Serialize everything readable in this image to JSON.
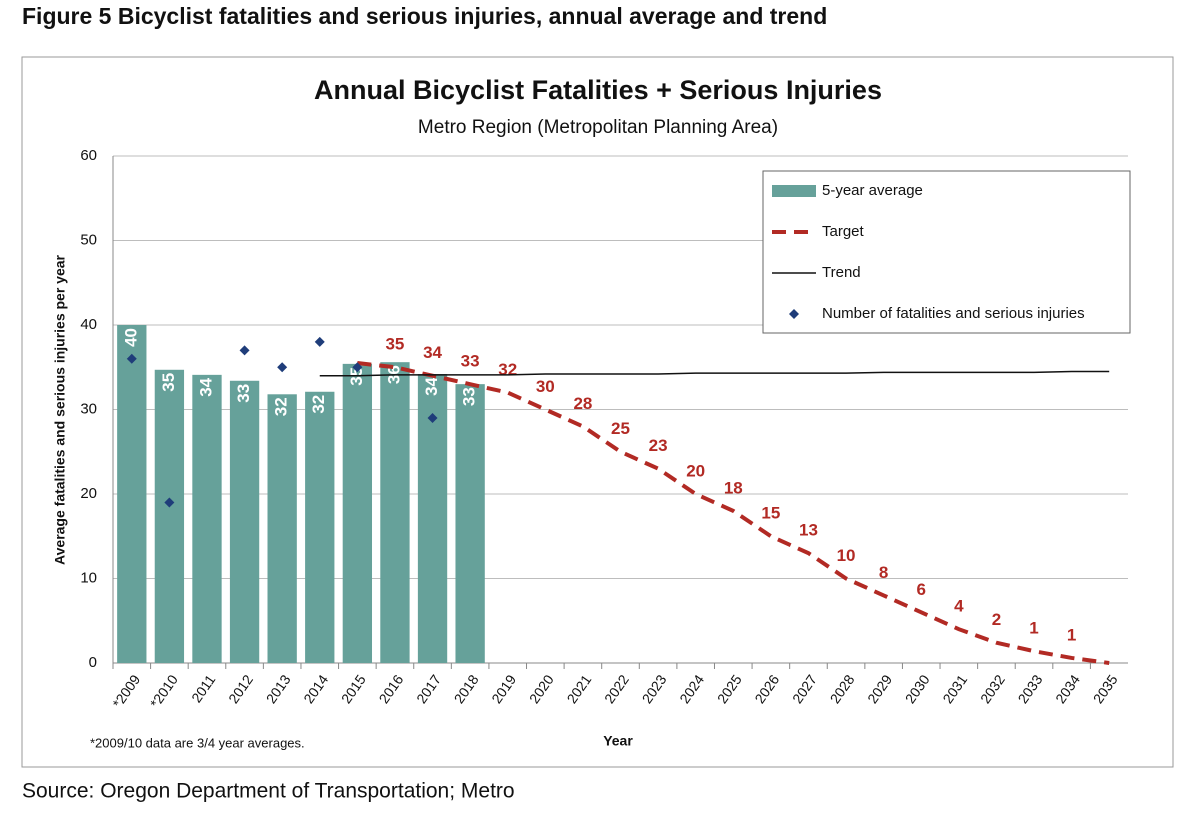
{
  "figure_title": "Figure 5 Bicyclist fatalities and serious injuries, annual average and trend",
  "source": "Source: Oregon Department of Transportation; Metro",
  "chart_data": {
    "type": "bar",
    "title": "Annual Bicyclist Fatalities + Serious Injuries",
    "subtitle": "Metro Region (Metropolitan Planning Area)",
    "xlabel": "Year",
    "ylabel": "Average fatalities and serious injuries per year",
    "footnote": "*2009/10 data are 3/4 year averages.",
    "categories": [
      "*2009",
      "*2010",
      "2011",
      "2012",
      "2013",
      "2014",
      "2015",
      "2016",
      "2017",
      "2018",
      "2019",
      "2020",
      "2021",
      "2022",
      "2023",
      "2024",
      "2025",
      "2026",
      "2027",
      "2028",
      "2029",
      "2030",
      "2031",
      "2032",
      "2033",
      "2034",
      "2035"
    ],
    "series": [
      {
        "name": "5-year average",
        "type": "bar",
        "color": "#66a19a",
        "values": [
          40,
          34.7,
          34.1,
          33.4,
          31.8,
          32.1,
          35.4,
          35.6,
          34.2,
          33.0,
          null,
          null,
          null,
          null,
          null,
          null,
          null,
          null,
          null,
          null,
          null,
          null,
          null,
          null,
          null,
          null,
          null
        ],
        "value_labels": [
          "40",
          "35",
          "34",
          "33",
          "32",
          "32",
          "35",
          "36",
          "34",
          "33",
          null,
          null,
          null,
          null,
          null,
          null,
          null,
          null,
          null,
          null,
          null,
          null,
          null,
          null,
          null,
          null,
          null
        ]
      },
      {
        "name": "Target",
        "type": "line",
        "dashed": true,
        "color": "#b22a24",
        "values": [
          null,
          null,
          null,
          null,
          null,
          null,
          35.5,
          35,
          34,
          33,
          32,
          30,
          28,
          25,
          23,
          20,
          18,
          15,
          13,
          10,
          8,
          6,
          4,
          2.4,
          1.4,
          0.6,
          0
        ],
        "value_labels": [
          null,
          null,
          null,
          null,
          null,
          null,
          null,
          "35",
          "34",
          "33",
          "32",
          "30",
          "28",
          "25",
          "23",
          "20",
          "18",
          "15",
          "13",
          "10",
          "8",
          "6",
          "4",
          "2",
          "1",
          "1",
          null
        ]
      },
      {
        "name": "Trend",
        "type": "line",
        "dashed": false,
        "color": "#111111",
        "values": [
          null,
          null,
          null,
          null,
          null,
          34.0,
          34.0,
          34.1,
          34.1,
          34.1,
          34.1,
          34.2,
          34.2,
          34.2,
          34.2,
          34.3,
          34.3,
          34.3,
          34.3,
          34.3,
          34.4,
          34.4,
          34.4,
          34.4,
          34.4,
          34.5,
          34.5
        ]
      },
      {
        "name": "Number of fatalities and serious injuries",
        "type": "scatter",
        "color": "#1f3d7a",
        "values": [
          36,
          19,
          null,
          37,
          35,
          38,
          35,
          null,
          29,
          null,
          null,
          null,
          null,
          null,
          null,
          null,
          null,
          null,
          null,
          null,
          null,
          null,
          null,
          null,
          null,
          null,
          null
        ]
      }
    ],
    "ylim": [
      0,
      60
    ],
    "yticks": [
      0,
      10,
      20,
      30,
      40,
      50,
      60
    ],
    "grid": true,
    "legend": "upper right"
  }
}
